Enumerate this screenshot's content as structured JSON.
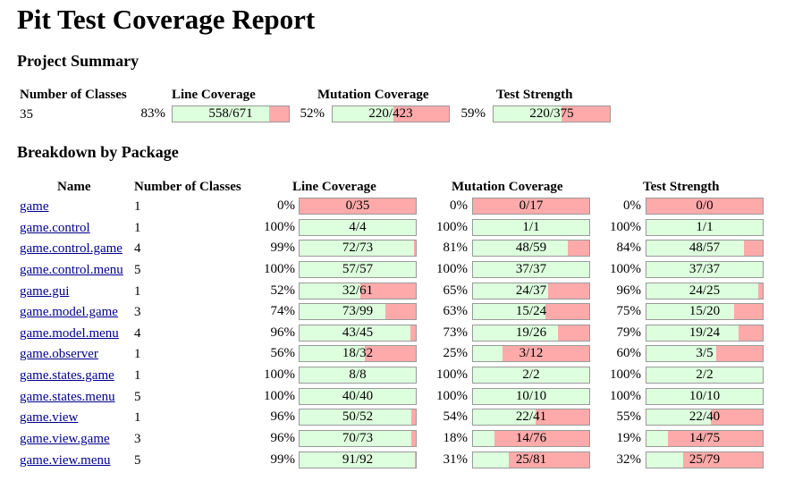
{
  "title": "Pit Test Coverage Report",
  "summary": {
    "heading": "Project Summary",
    "headers": {
      "classes": "Number of Classes",
      "line": "Line Coverage",
      "mutation": "Mutation Coverage",
      "strength": "Test Strength"
    },
    "classes": "35",
    "line": {
      "pct": "83%",
      "label": "558/671",
      "ratio": 0.8316
    },
    "mutation": {
      "pct": "52%",
      "label": "220/423",
      "ratio": 0.5201
    },
    "strength": {
      "pct": "59%",
      "label": "220/375",
      "ratio": 0.5867
    }
  },
  "breakdown": {
    "heading": "Breakdown by Package",
    "headers": {
      "name": "Name",
      "classes": "Number of Classes",
      "line": "Line Coverage",
      "mutation": "Mutation Coverage",
      "strength": "Test Strength"
    },
    "packages": [
      {
        "name": "game",
        "classes": "1",
        "line": {
          "pct": "0%",
          "label": "0/35",
          "ratio": 0
        },
        "mutation": {
          "pct": "0%",
          "label": "0/17",
          "ratio": 0
        },
        "strength": {
          "pct": "0%",
          "label": "0/0",
          "ratio": 0
        }
      },
      {
        "name": "game.control",
        "classes": "1",
        "line": {
          "pct": "100%",
          "label": "4/4",
          "ratio": 1
        },
        "mutation": {
          "pct": "100%",
          "label": "1/1",
          "ratio": 1
        },
        "strength": {
          "pct": "100%",
          "label": "1/1",
          "ratio": 1
        }
      },
      {
        "name": "game.control.game",
        "classes": "4",
        "line": {
          "pct": "99%",
          "label": "72/73",
          "ratio": 0.9863
        },
        "mutation": {
          "pct": "81%",
          "label": "48/59",
          "ratio": 0.8136
        },
        "strength": {
          "pct": "84%",
          "label": "48/57",
          "ratio": 0.8421
        }
      },
      {
        "name": "game.control.menu",
        "classes": "5",
        "line": {
          "pct": "100%",
          "label": "57/57",
          "ratio": 1
        },
        "mutation": {
          "pct": "100%",
          "label": "37/37",
          "ratio": 1
        },
        "strength": {
          "pct": "100%",
          "label": "37/37",
          "ratio": 1
        }
      },
      {
        "name": "game.gui",
        "classes": "1",
        "line": {
          "pct": "52%",
          "label": "32/61",
          "ratio": 0.5246
        },
        "mutation": {
          "pct": "65%",
          "label": "24/37",
          "ratio": 0.6486
        },
        "strength": {
          "pct": "96%",
          "label": "24/25",
          "ratio": 0.96
        }
      },
      {
        "name": "game.model.game",
        "classes": "3",
        "line": {
          "pct": "74%",
          "label": "73/99",
          "ratio": 0.7374
        },
        "mutation": {
          "pct": "63%",
          "label": "15/24",
          "ratio": 0.625
        },
        "strength": {
          "pct": "75%",
          "label": "15/20",
          "ratio": 0.75
        }
      },
      {
        "name": "game.model.menu",
        "classes": "4",
        "line": {
          "pct": "96%",
          "label": "43/45",
          "ratio": 0.9556
        },
        "mutation": {
          "pct": "73%",
          "label": "19/26",
          "ratio": 0.7308
        },
        "strength": {
          "pct": "79%",
          "label": "19/24",
          "ratio": 0.7917
        }
      },
      {
        "name": "game.observer",
        "classes": "1",
        "line": {
          "pct": "56%",
          "label": "18/32",
          "ratio": 0.5625
        },
        "mutation": {
          "pct": "25%",
          "label": "3/12",
          "ratio": 0.25
        },
        "strength": {
          "pct": "60%",
          "label": "3/5",
          "ratio": 0.6
        }
      },
      {
        "name": "game.states.game",
        "classes": "1",
        "line": {
          "pct": "100%",
          "label": "8/8",
          "ratio": 1
        },
        "mutation": {
          "pct": "100%",
          "label": "2/2",
          "ratio": 1
        },
        "strength": {
          "pct": "100%",
          "label": "2/2",
          "ratio": 1
        }
      },
      {
        "name": "game.states.menu",
        "classes": "5",
        "line": {
          "pct": "100%",
          "label": "40/40",
          "ratio": 1
        },
        "mutation": {
          "pct": "100%",
          "label": "10/10",
          "ratio": 1
        },
        "strength": {
          "pct": "100%",
          "label": "10/10",
          "ratio": 1
        }
      },
      {
        "name": "game.view",
        "classes": "1",
        "line": {
          "pct": "96%",
          "label": "50/52",
          "ratio": 0.9615
        },
        "mutation": {
          "pct": "54%",
          "label": "22/41",
          "ratio": 0.5366
        },
        "strength": {
          "pct": "55%",
          "label": "22/40",
          "ratio": 0.55
        }
      },
      {
        "name": "game.view.game",
        "classes": "3",
        "line": {
          "pct": "96%",
          "label": "70/73",
          "ratio": 0.9589
        },
        "mutation": {
          "pct": "18%",
          "label": "14/76",
          "ratio": 0.1842
        },
        "strength": {
          "pct": "19%",
          "label": "14/75",
          "ratio": 0.1867
        }
      },
      {
        "name": "game.view.menu",
        "classes": "5",
        "line": {
          "pct": "99%",
          "label": "91/92",
          "ratio": 0.9891
        },
        "mutation": {
          "pct": "31%",
          "label": "25/81",
          "ratio": 0.3086
        },
        "strength": {
          "pct": "32%",
          "label": "25/79",
          "ratio": 0.3165
        }
      }
    ]
  },
  "colors": {
    "covered": "#ddffdd",
    "uncovered": "#ffaaaa",
    "link": "#00008b"
  }
}
